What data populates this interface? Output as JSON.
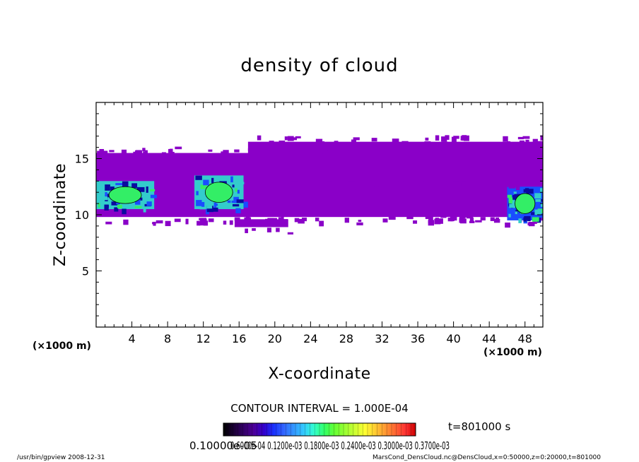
{
  "chart_data": {
    "type": "heatmap",
    "title": "density of cloud",
    "xlabel": "X-coordinate",
    "ylabel": "Z-coordinate",
    "x_unit": "(×1000 m)",
    "x_unit_right": "(×1000 m)",
    "xlim": [
      0,
      50
    ],
    "ylim": [
      0,
      20
    ],
    "x_ticks": [
      4,
      8,
      12,
      16,
      20,
      24,
      28,
      32,
      36,
      40,
      44,
      48
    ],
    "x_tick_labels": [
      "4",
      "8",
      "12",
      "16",
      "20",
      "24",
      "28",
      "32",
      "36",
      "40",
      "44",
      "48"
    ],
    "y_ticks": [
      5,
      10,
      15
    ],
    "y_tick_labels": [
      "5",
      "10",
      "15"
    ],
    "contour_interval": "CONTOUR INTERVAL = 1.000E-04",
    "time_label": "t=801000 s",
    "colorbar_labels": "0.10000e-05",
    "colorbar_label_overlap": "0.6000e-04 0.1200e-03 0.1800e-03 0.2400e-03 0.3000e-03 0.3700e-03",
    "colorbar_colors": [
      "#000000",
      "#1a0033",
      "#330066",
      "#4d0099",
      "#3300cc",
      "#1a33ff",
      "#3366ff",
      "#3399ff",
      "#33ccff",
      "#33ffcc",
      "#33ff66",
      "#66ff33",
      "#99ff33",
      "#ccff33",
      "#ffff33",
      "#ffcc33",
      "#ff9933",
      "#ff6633",
      "#ff3333",
      "#cc0000"
    ],
    "regions": [
      {
        "name": "main-band-left",
        "xmin": 0,
        "xmax": 50,
        "zmin": 9.8,
        "zmax": 15.5,
        "level": 1
      },
      {
        "name": "upper-sheet",
        "xmin": 17,
        "xmax": 50,
        "zmin": 13.0,
        "zmax": 16.5,
        "level": 1
      },
      {
        "name": "lower-sheet",
        "xmin": 29,
        "xmax": 44,
        "zmin": 10.0,
        "zmax": 12.5,
        "level": 1
      },
      {
        "name": "small-patch",
        "xmin": 15.5,
        "xmax": 21.5,
        "zmin": 8.9,
        "zmax": 9.6,
        "level": 1
      },
      {
        "name": "core-left",
        "xmin": 0,
        "xmax": 6.5,
        "zmin": 10.5,
        "zmax": 13.0,
        "level": 3
      },
      {
        "name": "core-mid",
        "xmin": 11,
        "xmax": 16.5,
        "zmin": 10.5,
        "zmax": 13.5,
        "level": 3
      },
      {
        "name": "core-right",
        "xmin": 46,
        "xmax": 50,
        "zmin": 9.5,
        "zmax": 12.5,
        "level": 2
      }
    ],
    "grid": false,
    "legend": "bottom-center"
  },
  "footer": {
    "left": "/usr/bin/gpview   2008-12-31",
    "right": "MarsCond_DensCloud.nc@DensCloud,x=0:50000,z=0:20000,t=801000"
  },
  "colors": {
    "purple": "#8a00c8",
    "blue_dark": "#0a0aa0",
    "blue": "#1a4cff",
    "cyan": "#33cccc",
    "green": "#33ee66"
  }
}
